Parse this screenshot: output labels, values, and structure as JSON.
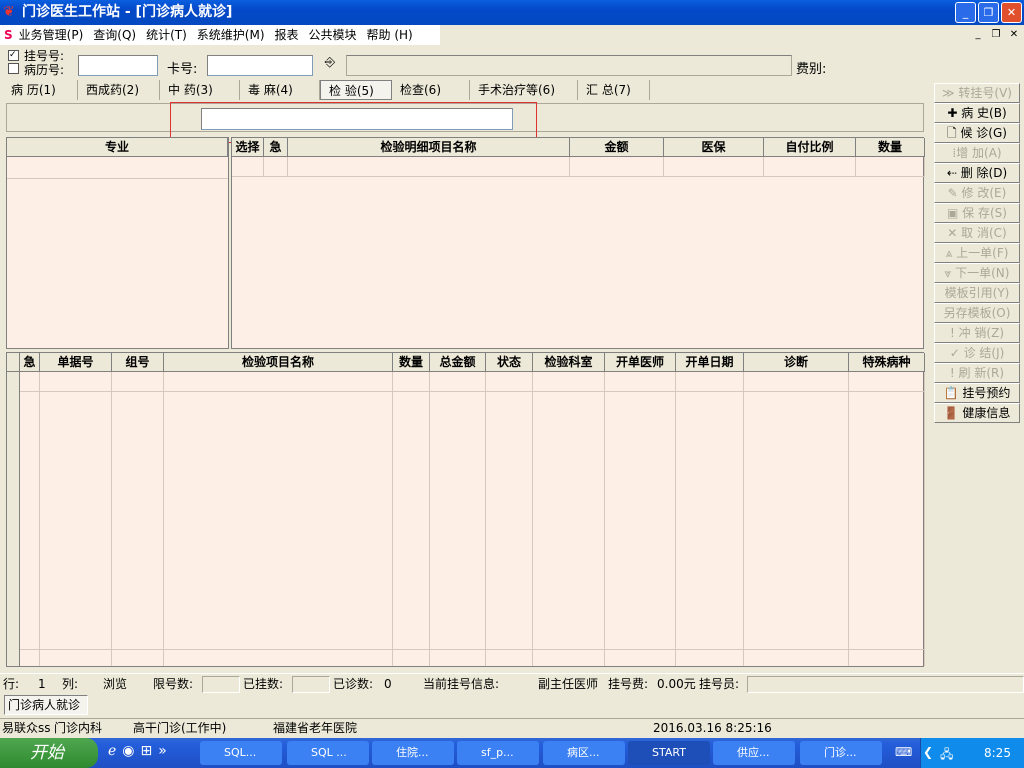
{
  "window": {
    "title": "门诊医生工作站 - [门诊病人就诊]",
    "min": "_",
    "max": "❐",
    "close": "✕"
  },
  "menu": [
    "业务管理(P)",
    "查询(Q)",
    "统计(T)",
    "系统维护(M)",
    "报表",
    "公共模块",
    "帮助 (H)"
  ],
  "toolbar": {
    "reg_no_label": "挂号号:",
    "reg_no_checked": true,
    "record_no_label": "病历号:",
    "record_no_checked": false,
    "card_label": "卡号:",
    "card_value": "",
    "fee_type_label": "费别:",
    "reg_no_value": ""
  },
  "tabs": [
    {
      "label": "病 历(1)"
    },
    {
      "label": "西成药(2)"
    },
    {
      "label": "中 药(3)"
    },
    {
      "label": "毒 麻(4)"
    },
    {
      "label": "检 验(5)",
      "active": true
    },
    {
      "label": "检查(6)"
    },
    {
      "label": "手术治疗等(6)"
    },
    {
      "label": "汇 总(7)"
    }
  ],
  "search_input": {
    "value": ""
  },
  "specialty_header": "专业",
  "detail_columns": [
    "选择",
    "急",
    "检验明细项目名称",
    "金额",
    "医保",
    "自付比例",
    "数量"
  ],
  "order_columns": [
    "急",
    "单据号",
    "组号",
    "检验项目名称",
    "数量",
    "总金额",
    "状态",
    "检验科室",
    "开单医师",
    "开单日期",
    "诊断",
    "特殊病种"
  ],
  "side_buttons": [
    {
      "label": "≫ 转挂号(V)",
      "enabled": false
    },
    {
      "label": "✚ 病  史(B)",
      "enabled": true
    },
    {
      "label": "🗋 候  诊(G)",
      "enabled": true
    },
    {
      "label": "⁞增  加(A)",
      "enabled": false
    },
    {
      "label": "⇠ 删  除(D)",
      "enabled": true
    },
    {
      "label": "✎ 修  改(E)",
      "enabled": false
    },
    {
      "label": "▣ 保  存(S)",
      "enabled": false
    },
    {
      "label": "✕ 取  消(C)",
      "enabled": false
    },
    {
      "label": "⩓ 上一单(F)",
      "enabled": false
    },
    {
      "label": "⩔ 下一单(N)",
      "enabled": false
    },
    {
      "label": "模板引用(Y)",
      "enabled": false
    },
    {
      "label": "另存模板(O)",
      "enabled": false
    },
    {
      "label": "! 冲 销(Z)",
      "enabled": false
    },
    {
      "label": "✓ 诊 结(J)",
      "enabled": false
    },
    {
      "label": "! 刷 新(R)",
      "enabled": false
    },
    {
      "label": "📋 挂号预约",
      "enabled": true
    },
    {
      "label": "🚪 健康信息",
      "enabled": true
    }
  ],
  "status1": {
    "row_label": "行:",
    "row": "1",
    "col_label": "列:",
    "mode": "浏览",
    "limit_label": "限号数:",
    "registered_label": "已挂数:",
    "diagnosed_label": "已诊数:",
    "diagnosed": "0",
    "current_label": "当前挂号信息:",
    "doctor_title": "副主任医师号",
    "fee_label": "挂号费:",
    "fee": "0.00元",
    "clerk_label": "挂号员:"
  },
  "doc_tab": "门诊病人就诊",
  "status2": {
    "user": "易联众ss",
    "dept": "门诊内科",
    "clinic": "高干门诊(工作中)",
    "hospital": "福建省老年医院",
    "datetime": "2016.03.16 8:25:16"
  },
  "taskbar": {
    "start": "开始",
    "items": [
      "SQL...",
      "SQL ...",
      "住院...",
      "sf_p...",
      "病区...",
      "START",
      "供应...",
      "门诊..."
    ],
    "active": "START",
    "clock": "8:25"
  }
}
